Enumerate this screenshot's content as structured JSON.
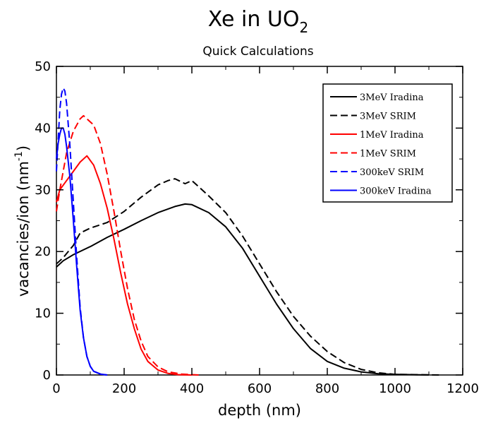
{
  "chart_data": {
    "type": "line",
    "title": "Xe in UO",
    "title_subscript": "2",
    "subtitle": "Quick Calculations",
    "xlabel": "depth (nm)",
    "ylabel": "vacancies/ion (nm",
    "ylabel_superscript": "-1",
    "ylabel_close": ")",
    "xlim": [
      0,
      1200
    ],
    "ylim": [
      0,
      50
    ],
    "x_ticks": [
      0,
      200,
      400,
      600,
      800,
      1000,
      1200
    ],
    "y_ticks": [
      0,
      10,
      20,
      30,
      40,
      50
    ],
    "grid": false,
    "legend_position": "top-right",
    "series": [
      {
        "name": "3MeV Iradina",
        "color": "#000000",
        "dash": "solid",
        "points": [
          [
            0,
            17.5
          ],
          [
            20,
            18.5
          ],
          [
            50,
            19.5
          ],
          [
            100,
            20.8
          ],
          [
            150,
            22.3
          ],
          [
            200,
            23.6
          ],
          [
            250,
            25
          ],
          [
            300,
            26.3
          ],
          [
            350,
            27.3
          ],
          [
            380,
            27.7
          ],
          [
            400,
            27.6
          ],
          [
            450,
            26.3
          ],
          [
            500,
            24
          ],
          [
            550,
            20.5
          ],
          [
            600,
            16
          ],
          [
            650,
            11.5
          ],
          [
            700,
            7.5
          ],
          [
            750,
            4.3
          ],
          [
            800,
            2.2
          ],
          [
            850,
            1.1
          ],
          [
            900,
            0.5
          ],
          [
            950,
            0.2
          ],
          [
            1000,
            0.1
          ],
          [
            1100,
            0
          ]
        ]
      },
      {
        "name": "3MeV SRIM",
        "color": "#000000",
        "dash": "dashed",
        "points": [
          [
            0,
            18
          ],
          [
            20,
            19
          ],
          [
            50,
            21
          ],
          [
            70,
            23
          ],
          [
            100,
            23.8
          ],
          [
            150,
            24.7
          ],
          [
            200,
            26.5
          ],
          [
            250,
            28.8
          ],
          [
            300,
            30.8
          ],
          [
            330,
            31.5
          ],
          [
            350,
            31.8
          ],
          [
            380,
            31
          ],
          [
            400,
            31.5
          ],
          [
            420,
            30.5
          ],
          [
            450,
            29
          ],
          [
            500,
            26.3
          ],
          [
            550,
            22.5
          ],
          [
            600,
            18
          ],
          [
            650,
            13.5
          ],
          [
            700,
            9.5
          ],
          [
            750,
            6.3
          ],
          [
            800,
            3.8
          ],
          [
            850,
            2
          ],
          [
            900,
            0.9
          ],
          [
            950,
            0.35
          ],
          [
            1000,
            0.1
          ],
          [
            1100,
            0.02
          ],
          [
            1140,
            0
          ]
        ]
      },
      {
        "name": "1MeV Iradina",
        "color": "#ff0000",
        "dash": "solid",
        "points": [
          [
            0,
            28
          ],
          [
            10,
            30
          ],
          [
            30,
            31.5
          ],
          [
            50,
            33
          ],
          [
            70,
            34.5
          ],
          [
            90,
            35.5
          ],
          [
            110,
            34
          ],
          [
            130,
            31
          ],
          [
            150,
            27
          ],
          [
            170,
            22
          ],
          [
            190,
            16.5
          ],
          [
            210,
            11.5
          ],
          [
            230,
            7.5
          ],
          [
            250,
            4.2
          ],
          [
            270,
            2.2
          ],
          [
            300,
            0.8
          ],
          [
            330,
            0.25
          ],
          [
            360,
            0.05
          ],
          [
            400,
            0
          ]
        ]
      },
      {
        "name": "1MeV SRIM",
        "color": "#ff0000",
        "dash": "dashed",
        "points": [
          [
            0,
            26.5
          ],
          [
            10,
            30
          ],
          [
            30,
            36
          ],
          [
            50,
            39.5
          ],
          [
            70,
            41.5
          ],
          [
            80,
            42
          ],
          [
            90,
            41.5
          ],
          [
            110,
            40.5
          ],
          [
            130,
            37.5
          ],
          [
            150,
            32.5
          ],
          [
            170,
            26.5
          ],
          [
            190,
            20
          ],
          [
            210,
            14
          ],
          [
            230,
            9
          ],
          [
            250,
            5.5
          ],
          [
            270,
            3
          ],
          [
            300,
            1.3
          ],
          [
            330,
            0.5
          ],
          [
            370,
            0.15
          ],
          [
            420,
            0
          ]
        ]
      },
      {
        "name": "300keV SRIM",
        "color": "#0000ff",
        "dash": "dashed",
        "points": [
          [
            0,
            33
          ],
          [
            5,
            38
          ],
          [
            10,
            43
          ],
          [
            15,
            45.5
          ],
          [
            20,
            46.5
          ],
          [
            25,
            46
          ],
          [
            30,
            44
          ],
          [
            40,
            37
          ],
          [
            50,
            28
          ],
          [
            60,
            19
          ],
          [
            70,
            11
          ],
          [
            80,
            6
          ],
          [
            90,
            3
          ],
          [
            100,
            1.4
          ],
          [
            110,
            0.6
          ],
          [
            130,
            0.15
          ],
          [
            150,
            0
          ]
        ]
      },
      {
        "name": "300keV Iradina",
        "color": "#0000ff",
        "dash": "solid",
        "points": [
          [
            0,
            35
          ],
          [
            5,
            37.5
          ],
          [
            10,
            39
          ],
          [
            15,
            40
          ],
          [
            20,
            40
          ],
          [
            25,
            39
          ],
          [
            30,
            37
          ],
          [
            40,
            32
          ],
          [
            50,
            25
          ],
          [
            60,
            17.5
          ],
          [
            70,
            10.5
          ],
          [
            80,
            6
          ],
          [
            90,
            3
          ],
          [
            100,
            1.4
          ],
          [
            110,
            0.6
          ],
          [
            130,
            0.15
          ],
          [
            150,
            0
          ]
        ]
      }
    ]
  }
}
